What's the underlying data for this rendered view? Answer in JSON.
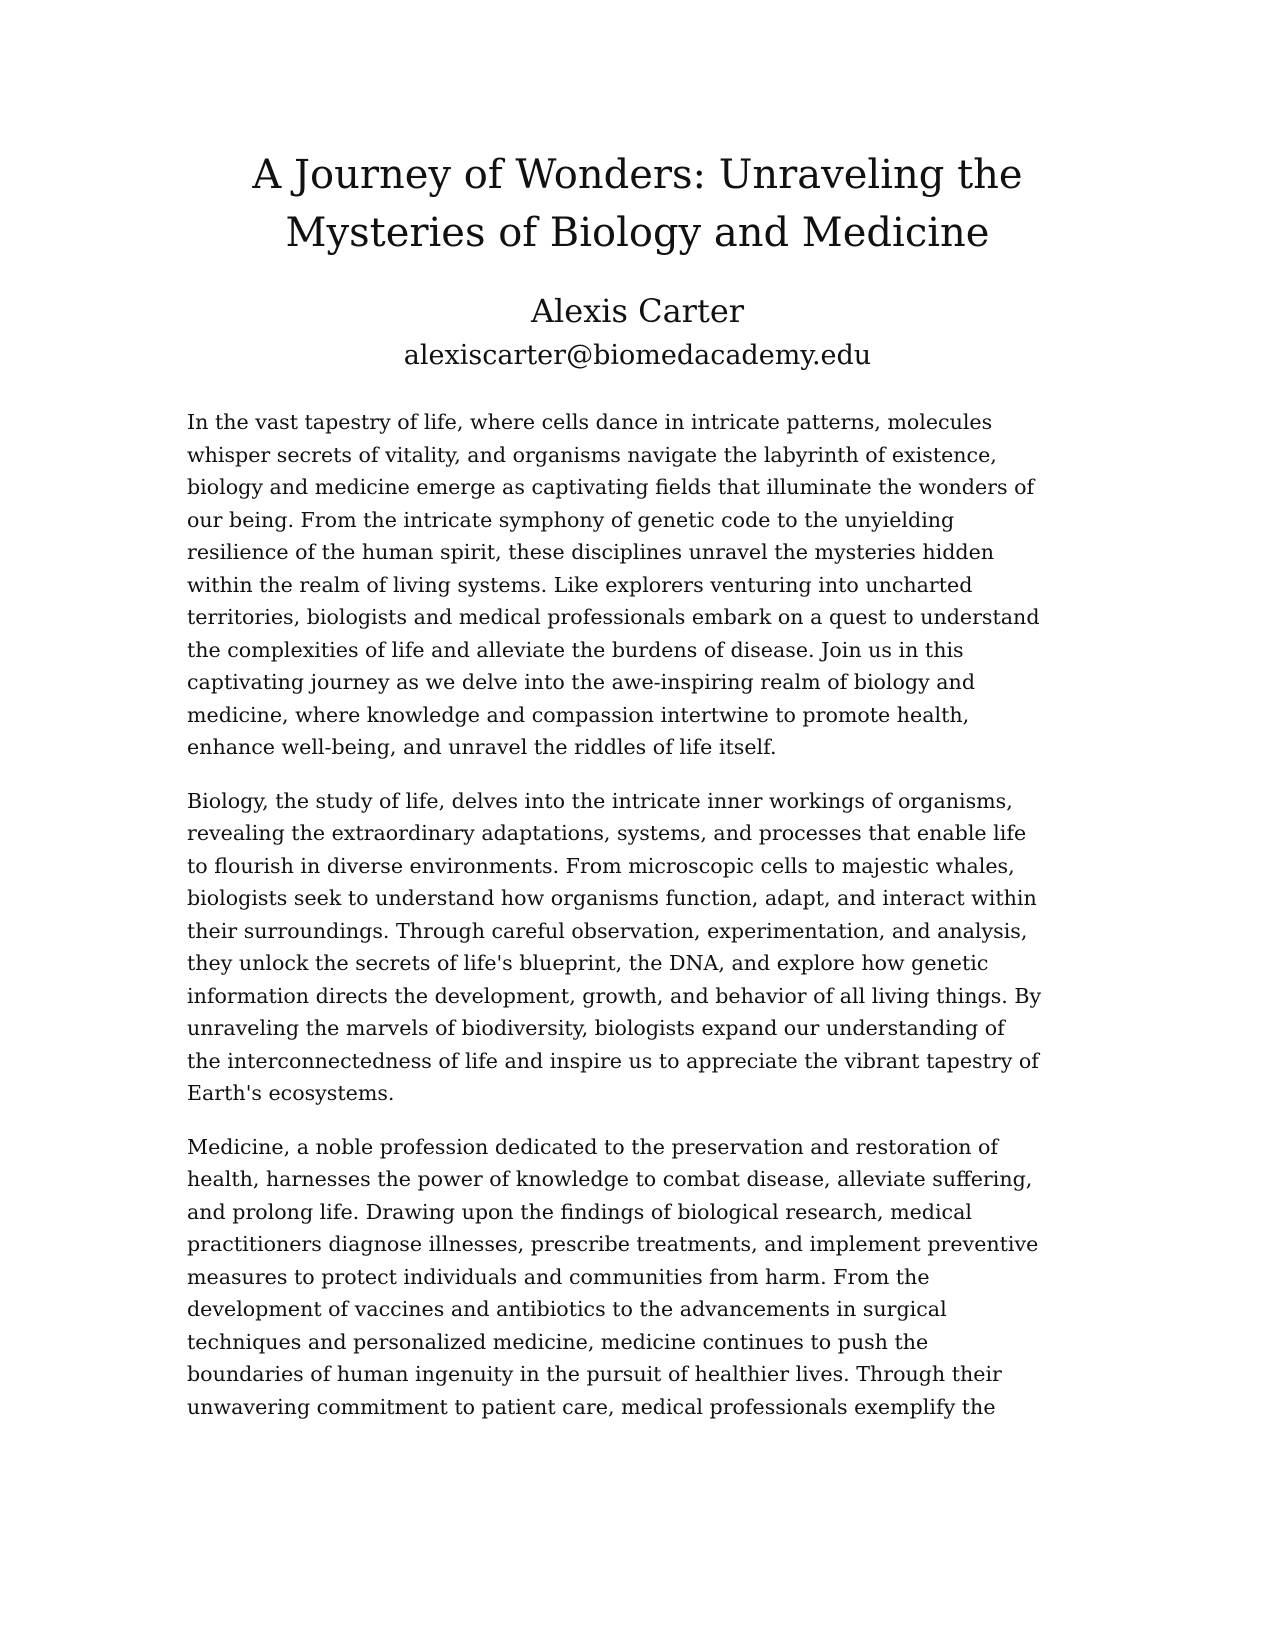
{
  "document": {
    "title_lines": [
      "A Journey of Wonders: Unraveling the",
      "Mysteries of Biology and Medicine"
    ],
    "author": "Alexis Carter",
    "email": "alexiscarter@biomedacademy.edu",
    "paragraphs": [
      {
        "lines": [
          "In the vast tapestry of life, where cells dance in intricate patterns, molecules",
          "whisper secrets of vitality, and organisms navigate the labyrinth of existence,",
          "biology and medicine emerge as captivating fields that illuminate the wonders of",
          "our being. From the intricate symphony of genetic code to the unyielding",
          "resilience of the human spirit, these disciplines unravel the mysteries hidden",
          "within the realm of living systems. Like explorers venturing into uncharted",
          "territories, biologists and medical professionals embark on a quest to understand",
          "the complexities of life and alleviate the burdens of disease. Join us in this",
          "captivating journey as we delve into the awe-inspiring realm of biology and",
          "medicine, where knowledge and compassion intertwine to promote health,",
          "enhance well-being, and unravel the riddles of life itself."
        ]
      },
      {
        "lines": [
          "Biology, the study of life, delves into the intricate inner workings of organisms,",
          "revealing the extraordinary adaptations, systems, and processes that enable life",
          "to flourish in diverse environments. From microscopic cells to majestic whales,",
          "biologists seek to understand how organisms function, adapt, and interact within",
          "their surroundings. Through careful observation, experimentation, and analysis,",
          "they unlock the secrets of life's blueprint, the DNA, and explore how genetic",
          "information directs the development, growth, and behavior of all living things. By",
          "unraveling the marvels of biodiversity, biologists expand our understanding of",
          "the interconnectedness of life and inspire us to appreciate the vibrant tapestry of",
          "Earth's ecosystems."
        ]
      },
      {
        "lines": [
          "Medicine, a noble profession dedicated to the preservation and restoration of",
          "health, harnesses the power of knowledge to combat disease, alleviate suffering,",
          "and prolong life. Drawing upon the findings of biological research, medical",
          "practitioners diagnose illnesses, prescribe treatments, and implement preventive",
          "measures to protect individuals and communities from harm. From the",
          "development of vaccines and antibiotics to the advancements in surgical",
          "techniques and personalized medicine, medicine continues to push the",
          "boundaries of human ingenuity in the pursuit of healthier lives. Through their",
          "unwavering commitment to patient care, medical professionals exemplify the"
        ]
      }
    ]
  }
}
